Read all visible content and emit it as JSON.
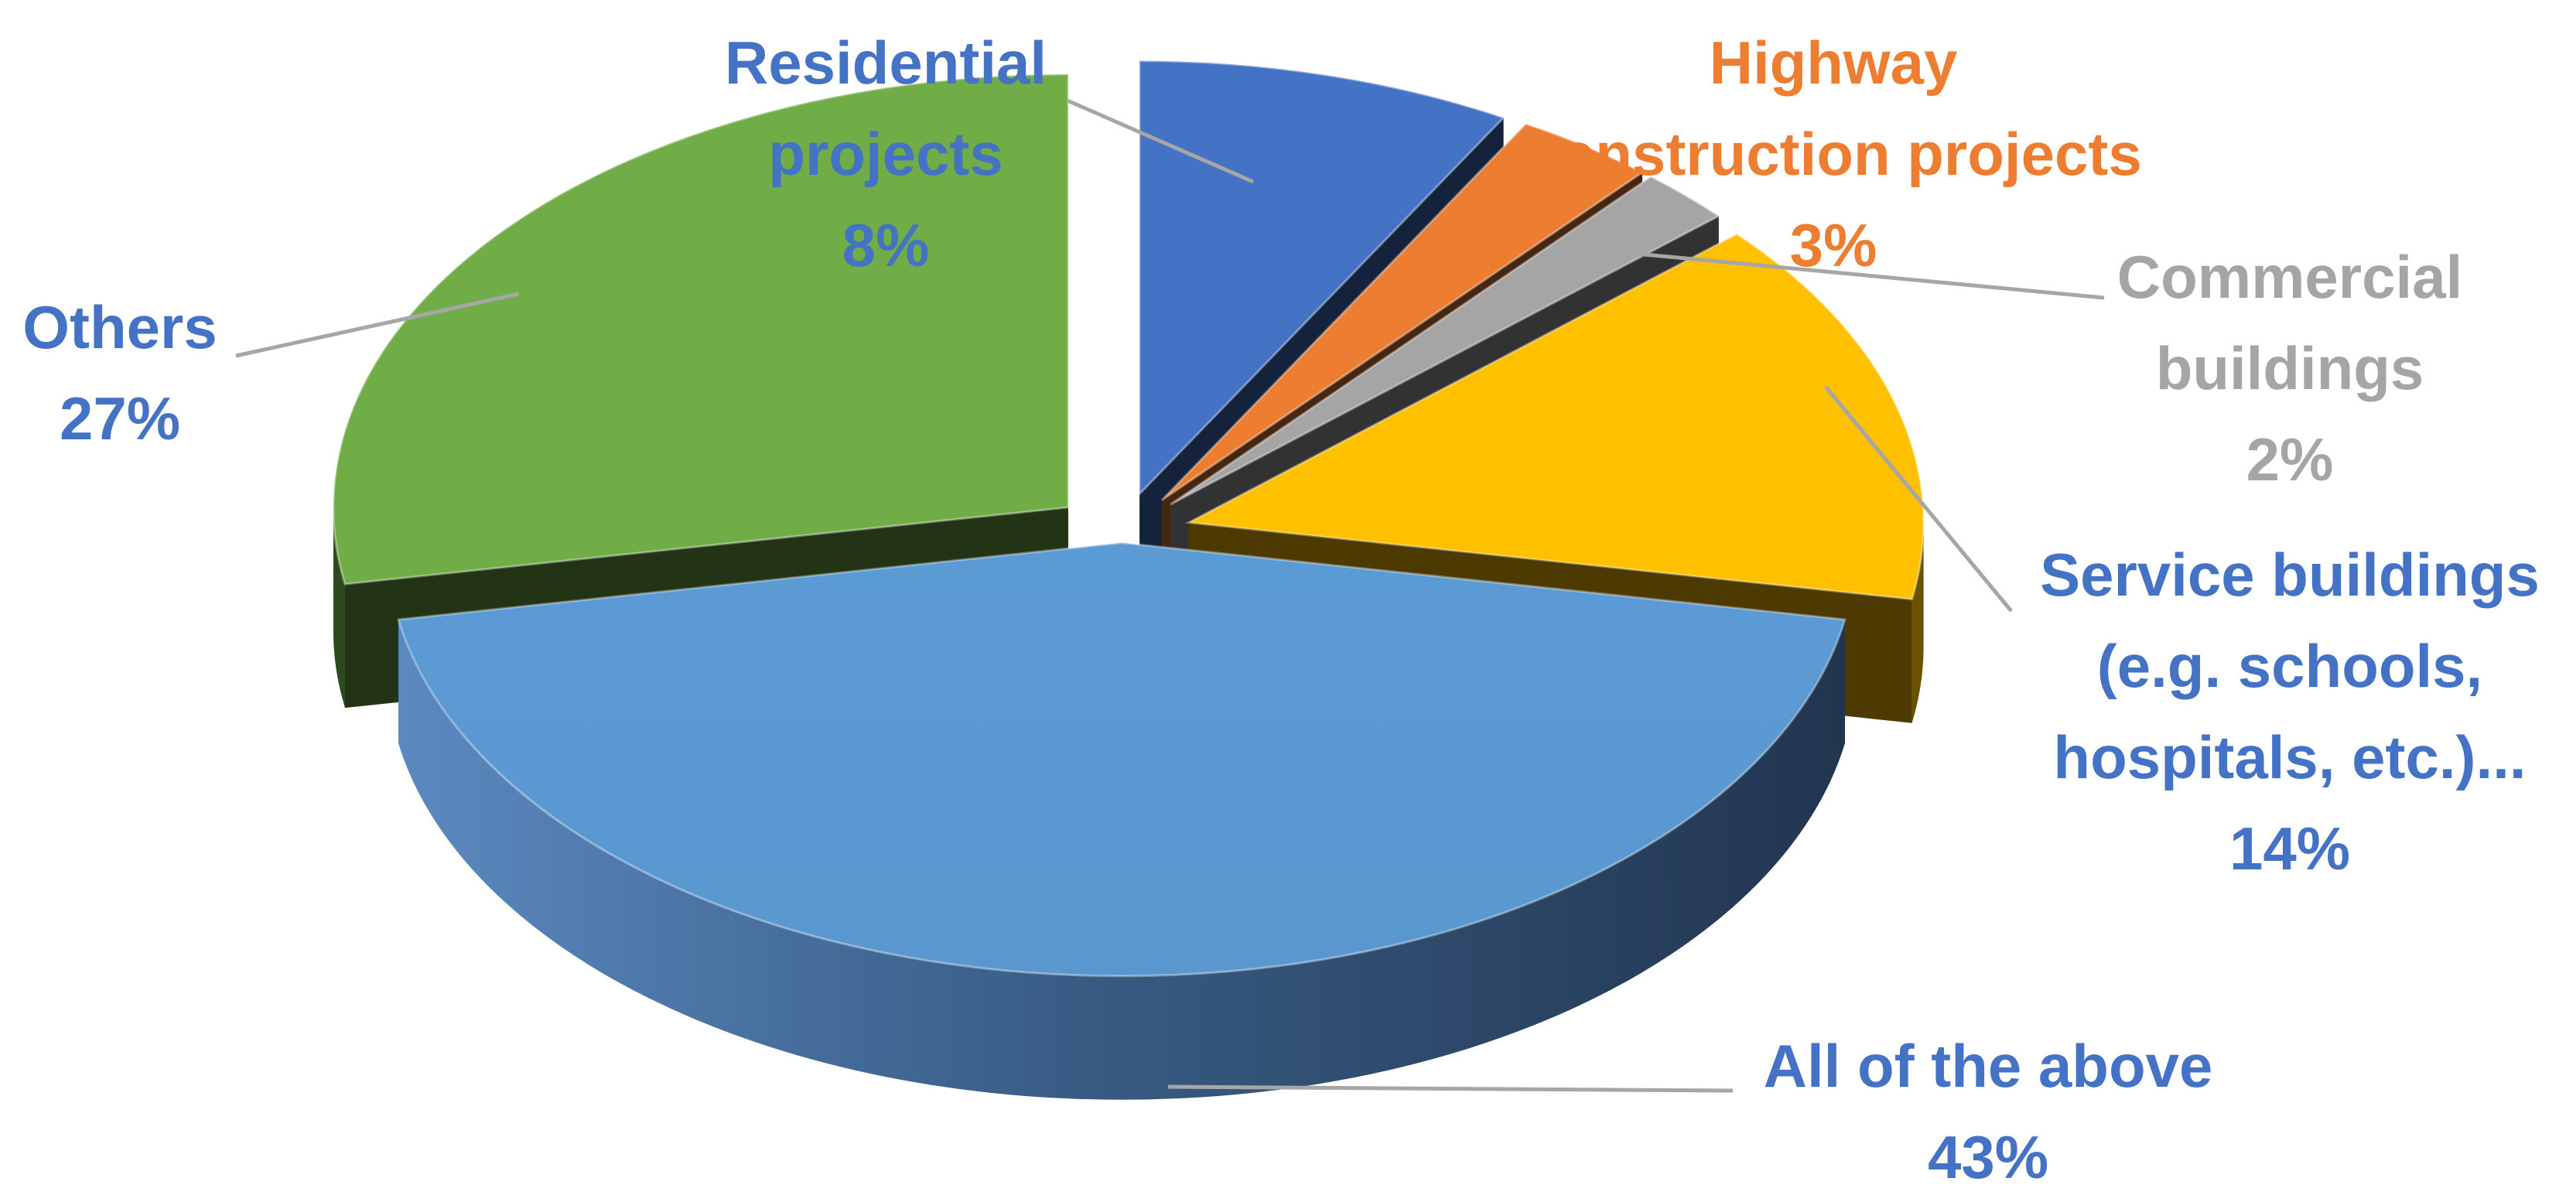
{
  "chart_data": {
    "type": "pie",
    "style": "3d-exploded",
    "title": "",
    "slices": [
      {
        "name_lines": [
          "Residential",
          "projects"
        ],
        "pct_label": "8%",
        "value": 8,
        "color": "#4472c4",
        "label_color": "#4472c4"
      },
      {
        "name_lines": [
          "Highway",
          "construction projects"
        ],
        "pct_label": "3%",
        "value": 3,
        "color": "#ed7d31",
        "label_color": "#ed7d31"
      },
      {
        "name_lines": [
          "Commercial",
          "buildings"
        ],
        "pct_label": "2%",
        "value": 2,
        "color": "#a5a5a5",
        "label_color": "#a5a5a5"
      },
      {
        "name_lines": [
          "Service buildings",
          "(e.g. schools,",
          "hospitals, etc.)..."
        ],
        "pct_label": "14%",
        "value": 14,
        "color": "#ffc000",
        "label_color": "#4472c4"
      },
      {
        "name_lines": [
          "All of the above"
        ],
        "pct_label": "43%",
        "value": 43,
        "color": "#5b9bd5",
        "label_color": "#4472c4"
      },
      {
        "name_lines": [
          "Others"
        ],
        "pct_label": "27%",
        "value": 27,
        "color": "#70ad47",
        "label_color": "#4472c4"
      }
    ]
  }
}
